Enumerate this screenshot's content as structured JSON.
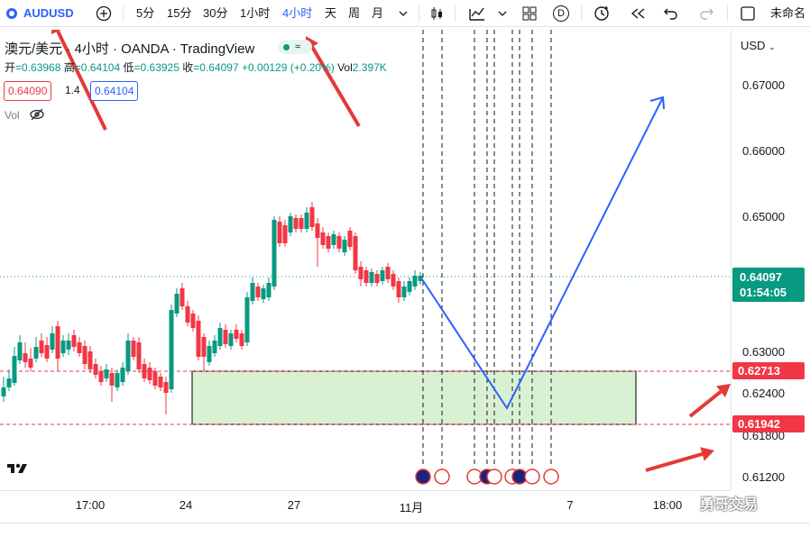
{
  "toolbar": {
    "symbol": "AUDUSD",
    "intervals": [
      "5分",
      "15分",
      "30分",
      "1小时",
      "4小时",
      "天",
      "周",
      "月"
    ],
    "active_interval": "4小时",
    "replay_label": "D",
    "layout_name": "未命名"
  },
  "legend": {
    "title": "澳元/美元 · 4小时 · OANDA · TradingView",
    "open_label": "开",
    "open": "=0.63968",
    "high_label": "高",
    "high": "=0.64104",
    "low_label": "低",
    "low": "=0.63925",
    "close_label": "收",
    "close": "=0.64097",
    "change": "+0.00129 (+0.20%)",
    "vol_label": "Vol",
    "vol": "2.397K",
    "bid": "0.64090",
    "spread": "1.4",
    "ask": "0.64104",
    "volume_indicator": "Vol"
  },
  "price_axis": {
    "currency": "USD",
    "ticks": [
      "0.67000",
      "0.66000",
      "0.65000",
      "0.63000",
      "0.62400",
      "0.61800",
      "0.61200"
    ],
    "current_price": "0.64097",
    "countdown": "01:54:05",
    "upper_level": "0.62713",
    "lower_level": "0.61942"
  },
  "time_axis": {
    "ticks": [
      "17:00",
      "24",
      "27",
      "11月",
      "7",
      "18:00"
    ]
  },
  "watermark": "勇哥交易",
  "colors": {
    "up": "#089981",
    "down": "#f23645",
    "accent": "#2962ff",
    "arrow": "#e53935",
    "zone_fill": "#d9f0d3",
    "projection": "#2962ff"
  }
}
